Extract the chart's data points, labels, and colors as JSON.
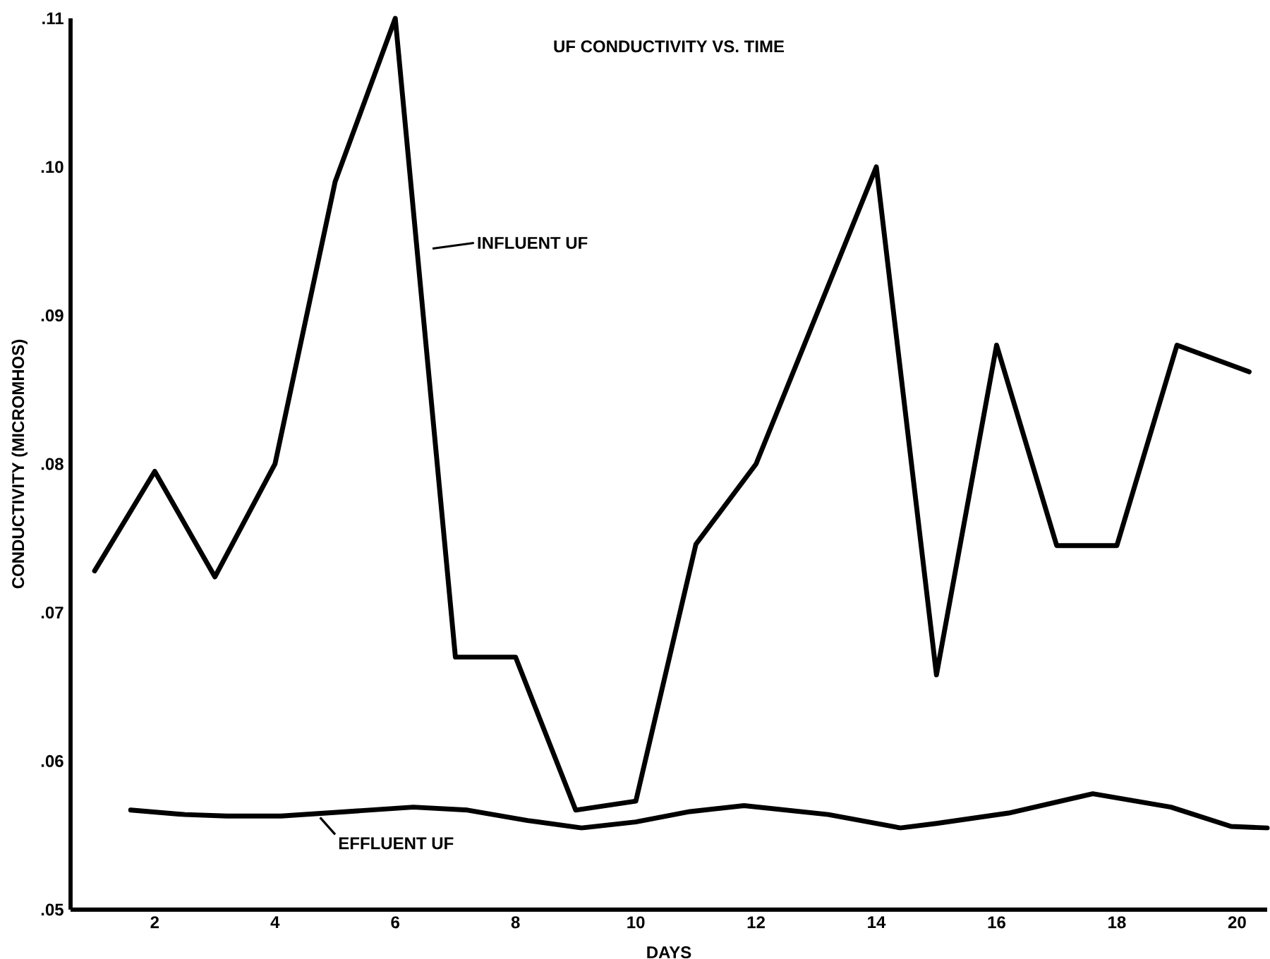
{
  "chart_data": {
    "type": "line",
    "title": "UF CONDUCTIVITY VS. TIME",
    "xlabel": "DAYS",
    "ylabel": "CONDUCTIVITY (MICROMHOS)",
    "series": [
      {
        "name": "INFLUENT UF",
        "color": "#000000",
        "x": [
          1,
          2,
          3,
          4,
          5,
          6,
          7,
          8,
          9,
          10,
          11,
          12,
          14,
          15,
          16,
          17,
          18,
          19,
          20.2
        ],
        "values": [
          0.0728,
          0.0795,
          0.0724,
          0.08,
          0.099,
          0.11,
          0.067,
          0.067,
          0.0567,
          0.0573,
          0.0746,
          0.08,
          0.1,
          0.0658,
          0.088,
          0.0745,
          0.0745,
          0.088,
          0.0862
        ]
      },
      {
        "name": "EFFLUENT UF",
        "color": "#000000",
        "x": [
          1.6,
          2.5,
          3.2,
          4.1,
          5.2,
          6.3,
          7.2,
          8.2,
          9.1,
          10,
          10.9,
          11.8,
          13.2,
          14.4,
          15,
          16.2,
          17.6,
          18.9,
          19.9,
          20.5
        ],
        "values": [
          0.0567,
          0.0564,
          0.0563,
          0.0563,
          0.0566,
          0.0569,
          0.0567,
          0.056,
          0.0555,
          0.0559,
          0.0566,
          0.057,
          0.0564,
          0.0555,
          0.0558,
          0.0565,
          0.0578,
          0.0569,
          0.0556,
          0.0555
        ]
      }
    ],
    "xlim": [
      0.6,
      20.5
    ],
    "ylim": [
      0.05,
      0.11
    ],
    "xticks": [
      2,
      4,
      6,
      8,
      10,
      12,
      14,
      16,
      18,
      20
    ],
    "yticks": [
      {
        "value": 0.05,
        "label": ".05"
      },
      {
        "value": 0.06,
        "label": ".06"
      },
      {
        "value": 0.07,
        "label": ".07"
      },
      {
        "value": 0.08,
        "label": ".08"
      },
      {
        "value": 0.09,
        "label": ".09"
      },
      {
        "value": 0.1,
        "label": ".10"
      },
      {
        "value": 0.11,
        "label": ".11"
      }
    ],
    "grid": false,
    "marker": "none",
    "line_style": "solid"
  }
}
